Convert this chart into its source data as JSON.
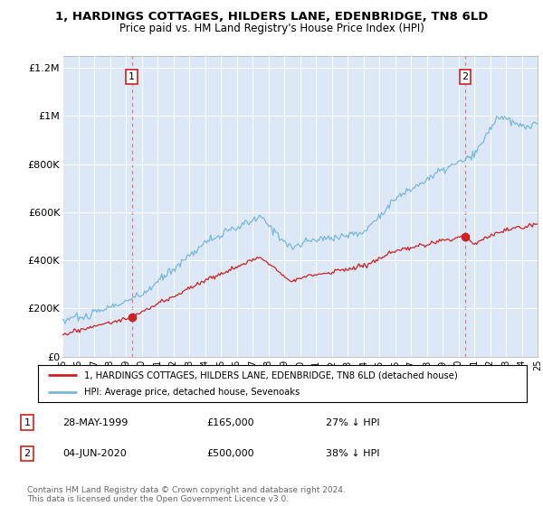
{
  "title_line1": "1, HARDINGS COTTAGES, HILDERS LANE, EDENBRIDGE, TN8 6LD",
  "title_line2": "Price paid vs. HM Land Registry's House Price Index (HPI)",
  "hpi_color": "#7ab8d9",
  "price_color": "#cc2222",
  "vline_color": "#e08080",
  "background_color": "#ffffff",
  "chart_bg_color": "#dce8f5",
  "grid_color": "#ffffff",
  "ylim": [
    0,
    1250000
  ],
  "yticks": [
    0,
    200000,
    400000,
    600000,
    800000,
    1000000,
    1200000
  ],
  "ytick_labels": [
    "£0",
    "£200K",
    "£400K",
    "£600K",
    "£800K",
    "£1M",
    "£1.2M"
  ],
  "xstart": 1995,
  "xend": 2025,
  "sale1_year": 1999.38,
  "sale1_price": 165000,
  "sale1_label": "1",
  "sale1_date": "28-MAY-1999",
  "sale1_amount": "£165,000",
  "sale1_pct": "27% ↓ HPI",
  "sale2_year": 2020.42,
  "sale2_price": 500000,
  "sale2_label": "2",
  "sale2_date": "04-JUN-2020",
  "sale2_amount": "£500,000",
  "sale2_pct": "38% ↓ HPI",
  "legend_line1": "1, HARDINGS COTTAGES, HILDERS LANE, EDENBRIDGE, TN8 6LD (detached house)",
  "legend_line2": "HPI: Average price, detached house, Sevenoaks",
  "footer": "Contains HM Land Registry data © Crown copyright and database right 2024.\nThis data is licensed under the Open Government Licence v3.0."
}
